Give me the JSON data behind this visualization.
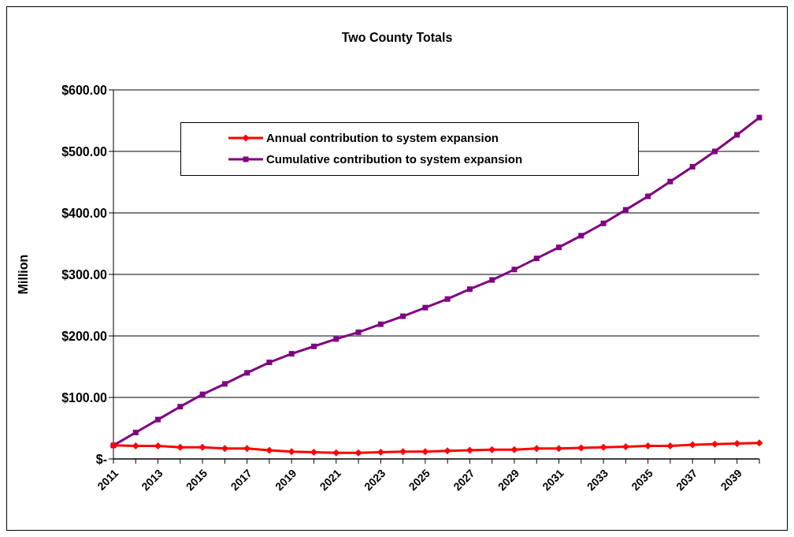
{
  "chart_data": {
    "type": "line",
    "title": "Two County Totals",
    "ylabel": "Million",
    "categories": [
      "2011",
      null,
      "2013",
      null,
      "2015",
      null,
      "2017",
      null,
      "2019",
      null,
      "2021",
      null,
      "2023",
      null,
      "2025",
      null,
      "2027",
      null,
      "2029",
      null,
      "2031",
      null,
      "2033",
      null,
      "2035",
      null,
      "2037",
      null,
      "2039",
      null
    ],
    "series": [
      {
        "name": "Annual contribution to system expansion",
        "color": "#ff0000",
        "marker": "diamond",
        "values": [
          22,
          21,
          21,
          19,
          19,
          17,
          17,
          14,
          12,
          11,
          10,
          10,
          11,
          12,
          12,
          13,
          14,
          15,
          15,
          17,
          17,
          18,
          19,
          20,
          21,
          21,
          23,
          24,
          25,
          26
        ]
      },
      {
        "name": "Cumulative contribution to system expansion",
        "color": "#800080",
        "marker": "square",
        "values": [
          22,
          43,
          64,
          85,
          105,
          122,
          140,
          157,
          171,
          183,
          195,
          206,
          219,
          232,
          246,
          260,
          276,
          291,
          308,
          326,
          344,
          363,
          383,
          405,
          427,
          451,
          475,
          500,
          527,
          555
        ]
      }
    ],
    "ylim": [
      0,
      600
    ],
    "yticks": [
      {
        "value": 0,
        "label": "$-"
      },
      {
        "value": 100,
        "label": "$100.00"
      },
      {
        "value": 200,
        "label": "$200.00"
      },
      {
        "value": 300,
        "label": "$300.00"
      },
      {
        "value": 400,
        "label": "$400.00"
      },
      {
        "value": 500,
        "label": "$500.00"
      },
      {
        "value": 600,
        "label": "$600.00"
      }
    ],
    "grid": "y",
    "legend": "top left",
    "line_style": "solid"
  }
}
